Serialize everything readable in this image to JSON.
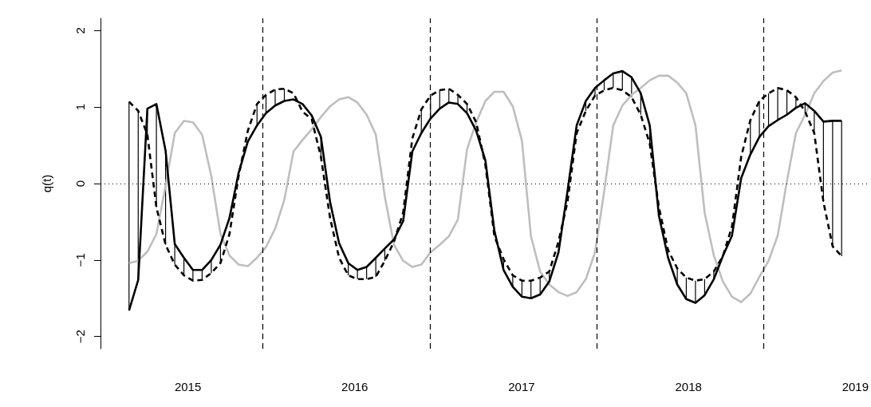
{
  "chart_data": {
    "type": "line",
    "ylabel": "q(t)",
    "x": [
      2014.647,
      2014.702,
      2014.757,
      2014.811,
      2014.866,
      2014.921,
      2014.976,
      2015.03,
      2015.085,
      2015.14,
      2015.195,
      2015.249,
      2015.304,
      2015.359,
      2015.414,
      2015.468,
      2015.523,
      2015.578,
      2015.633,
      2015.687,
      2015.742,
      2015.797,
      2015.852,
      2015.906,
      2015.961,
      2016.016,
      2016.071,
      2016.126,
      2016.18,
      2016.235,
      2016.29,
      2016.345,
      2016.399,
      2016.454,
      2016.509,
      2016.564,
      2016.618,
      2016.673,
      2016.728,
      2016.783,
      2016.837,
      2016.892,
      2016.947,
      2017.002,
      2017.056,
      2017.111,
      2017.166,
      2017.221,
      2017.275,
      2017.33,
      2017.385,
      2017.44,
      2017.495,
      2017.549,
      2017.604,
      2017.659,
      2017.714,
      2017.768,
      2017.823,
      2017.878,
      2017.933,
      2017.987,
      2018.042,
      2018.097,
      2018.152,
      2018.206,
      2018.261,
      2018.316,
      2018.371,
      2018.425,
      2018.48,
      2018.535,
      2018.59,
      2018.644,
      2018.699,
      2018.754,
      2018.809,
      2018.864,
      2018.918
    ],
    "series": [
      {
        "color": "#bebebe",
        "line_style": "solid",
        "values": [
          -1.04,
          -1.01,
          -0.89,
          -0.66,
          -0.03,
          0.66,
          0.82,
          0.8,
          0.64,
          0.1,
          -0.66,
          -0.94,
          -1.06,
          -1.08,
          -0.97,
          -0.83,
          -0.59,
          -0.21,
          0.42,
          0.57,
          0.71,
          0.87,
          1.01,
          1.1,
          1.13,
          1.06,
          0.9,
          0.64,
          -0.17,
          -0.8,
          -1.01,
          -1.09,
          -1.06,
          -0.9,
          -0.8,
          -0.69,
          -0.47,
          0.45,
          0.8,
          1.08,
          1.2,
          1.2,
          1.01,
          0.56,
          -0.69,
          -1.15,
          -1.32,
          -1.42,
          -1.47,
          -1.42,
          -1.25,
          -0.9,
          -0.1,
          0.76,
          1.02,
          1.16,
          1.25,
          1.35,
          1.41,
          1.41,
          1.32,
          1.18,
          0.76,
          -0.38,
          -0.94,
          -1.28,
          -1.48,
          -1.55,
          -1.44,
          -1.22,
          -1.01,
          -0.68,
          0.03,
          0.66,
          0.9,
          1.18,
          1.34,
          1.45,
          1.48
        ]
      },
      {
        "color": "#000000",
        "line_style": "dashed",
        "values": [
          1.07,
          0.95,
          0.64,
          -0.31,
          -0.8,
          -1.06,
          -1.2,
          -1.27,
          -1.26,
          -1.17,
          -1.04,
          -0.66,
          0.1,
          0.69,
          1.04,
          1.16,
          1.23,
          1.24,
          1.18,
          0.94,
          0.84,
          0.35,
          -0.45,
          -0.97,
          -1.2,
          -1.25,
          -1.25,
          -1.22,
          -1.01,
          -0.76,
          -0.38,
          0.59,
          0.97,
          1.15,
          1.22,
          1.24,
          1.16,
          1.04,
          0.8,
          0.24,
          -0.69,
          -0.99,
          -1.2,
          -1.27,
          -1.27,
          -1.23,
          -1.15,
          -0.76,
          -0.24,
          0.66,
          0.95,
          1.15,
          1.22,
          1.25,
          1.22,
          1.13,
          0.9,
          0.52,
          -0.31,
          -0.87,
          -1.11,
          -1.23,
          -1.27,
          -1.25,
          -1.15,
          -0.95,
          -0.56,
          0.35,
          0.83,
          1.08,
          1.18,
          1.25,
          1.22,
          1.13,
          0.94,
          0.66,
          -0.24,
          -0.82,
          -0.95
        ]
      },
      {
        "color": "#000000",
        "line_style": "solid",
        "values": [
          -1.66,
          -1.26,
          0.98,
          1.04,
          0.43,
          -0.79,
          -0.97,
          -1.13,
          -1.13,
          -1.0,
          -0.8,
          -0.45,
          0.14,
          0.55,
          0.76,
          0.92,
          1.02,
          1.08,
          1.1,
          1.04,
          0.89,
          0.61,
          -0.24,
          -0.78,
          -1.04,
          -1.13,
          -1.09,
          -0.97,
          -0.85,
          -0.73,
          -0.49,
          0.42,
          0.66,
          0.85,
          0.98,
          1.06,
          1.04,
          0.92,
          0.69,
          0.3,
          -0.62,
          -1.13,
          -1.35,
          -1.48,
          -1.5,
          -1.45,
          -1.28,
          -0.9,
          -0.1,
          0.76,
          1.08,
          1.25,
          1.35,
          1.44,
          1.47,
          1.39,
          1.18,
          0.76,
          -0.42,
          -0.97,
          -1.32,
          -1.51,
          -1.56,
          -1.46,
          -1.25,
          -0.95,
          -0.68,
          0.07,
          0.38,
          0.61,
          0.75,
          0.83,
          0.9,
          0.99,
          1.05,
          0.95,
          0.81,
          0.82,
          0.82
        ],
        "errors": [
          [
            -1.66,
            1.07
          ],
          [
            -1.26,
            0.95
          ],
          [
            0.64,
            0.98
          ],
          [
            -0.31,
            1.04
          ],
          [
            -0.8,
            0.43
          ],
          [
            -1.06,
            -0.79
          ],
          [
            -1.2,
            -0.97
          ],
          [
            -1.27,
            -1.13
          ],
          [
            -1.26,
            -1.13
          ],
          [
            -1.17,
            -1.0
          ],
          [
            -1.04,
            -0.8
          ],
          null,
          null,
          null,
          [
            0.76,
            1.04
          ],
          [
            0.92,
            1.16
          ],
          [
            1.02,
            1.23
          ],
          [
            1.08,
            1.24
          ],
          null,
          null,
          null,
          [
            0.35,
            0.61
          ],
          null,
          null,
          [
            -1.2,
            -1.04
          ],
          [
            -1.25,
            -1.13
          ],
          [
            -1.25,
            -1.09
          ],
          [
            -1.22,
            -0.97
          ],
          [
            -1.01,
            -0.85
          ],
          [
            -0.76,
            -0.73
          ],
          null,
          null,
          [
            0.66,
            0.97
          ],
          [
            0.85,
            1.15
          ],
          [
            0.98,
            1.22
          ],
          [
            1.06,
            1.24
          ],
          [
            1.04,
            1.16
          ],
          [
            0.92,
            1.04
          ],
          null,
          null,
          null,
          [
            -1.13,
            -0.99
          ],
          [
            -1.35,
            -1.2
          ],
          [
            -1.48,
            -1.27
          ],
          [
            -1.5,
            -1.27
          ],
          [
            -1.45,
            -1.23
          ],
          [
            -1.28,
            -1.15
          ],
          null,
          null,
          null,
          [
            0.95,
            1.08
          ],
          [
            1.15,
            1.25
          ],
          [
            1.22,
            1.35
          ],
          [
            1.25,
            1.44
          ],
          [
            1.22,
            1.47
          ],
          [
            1.13,
            1.39
          ],
          [
            0.9,
            1.18
          ],
          [
            0.52,
            0.76
          ],
          null,
          null,
          [
            -1.32,
            -1.11
          ],
          [
            -1.51,
            -1.23
          ],
          [
            -1.56,
            -1.27
          ],
          [
            -1.46,
            -1.25
          ],
          [
            -1.25,
            -1.15
          ],
          null,
          null,
          null,
          [
            0.38,
            0.83
          ],
          [
            0.61,
            1.08
          ],
          [
            0.75,
            1.18
          ],
          [
            0.83,
            1.25
          ],
          [
            0.9,
            1.22
          ],
          [
            0.99,
            1.13
          ],
          [
            0.94,
            1.05
          ],
          [
            0.66,
            0.95
          ],
          [
            -0.24,
            0.81
          ],
          [
            -0.82,
            0.82
          ],
          [
            -0.95,
            0.82
          ]
        ]
      }
    ],
    "xlim": [
      2014.476,
      2019.089
    ],
    "xticks": [
      2015,
      2016,
      2017,
      2018,
      2019
    ],
    "ylim": [
      -2.16,
      2.16
    ],
    "yticks": [
      {
        "value": -2,
        "label": "−2"
      },
      {
        "value": -1,
        "label": "−1"
      },
      0,
      1,
      2
    ],
    "ref_lines": [
      {
        "axis": "x",
        "value": 2015.45,
        "color": "#000000",
        "line_style": "dashed"
      },
      {
        "axis": "x",
        "value": 2016.45,
        "color": "#000000",
        "line_style": "dashed"
      },
      {
        "axis": "x",
        "value": 2017.45,
        "color": "#000000",
        "line_style": "dashed"
      },
      {
        "axis": "x",
        "value": 2018.45,
        "color": "#000000",
        "line_style": "dashed"
      },
      {
        "axis": "y",
        "value": 0,
        "color": "#000000",
        "line_style": "dotted"
      }
    ],
    "grid": false,
    "marker": "none",
    "tick_labels": "xy"
  }
}
